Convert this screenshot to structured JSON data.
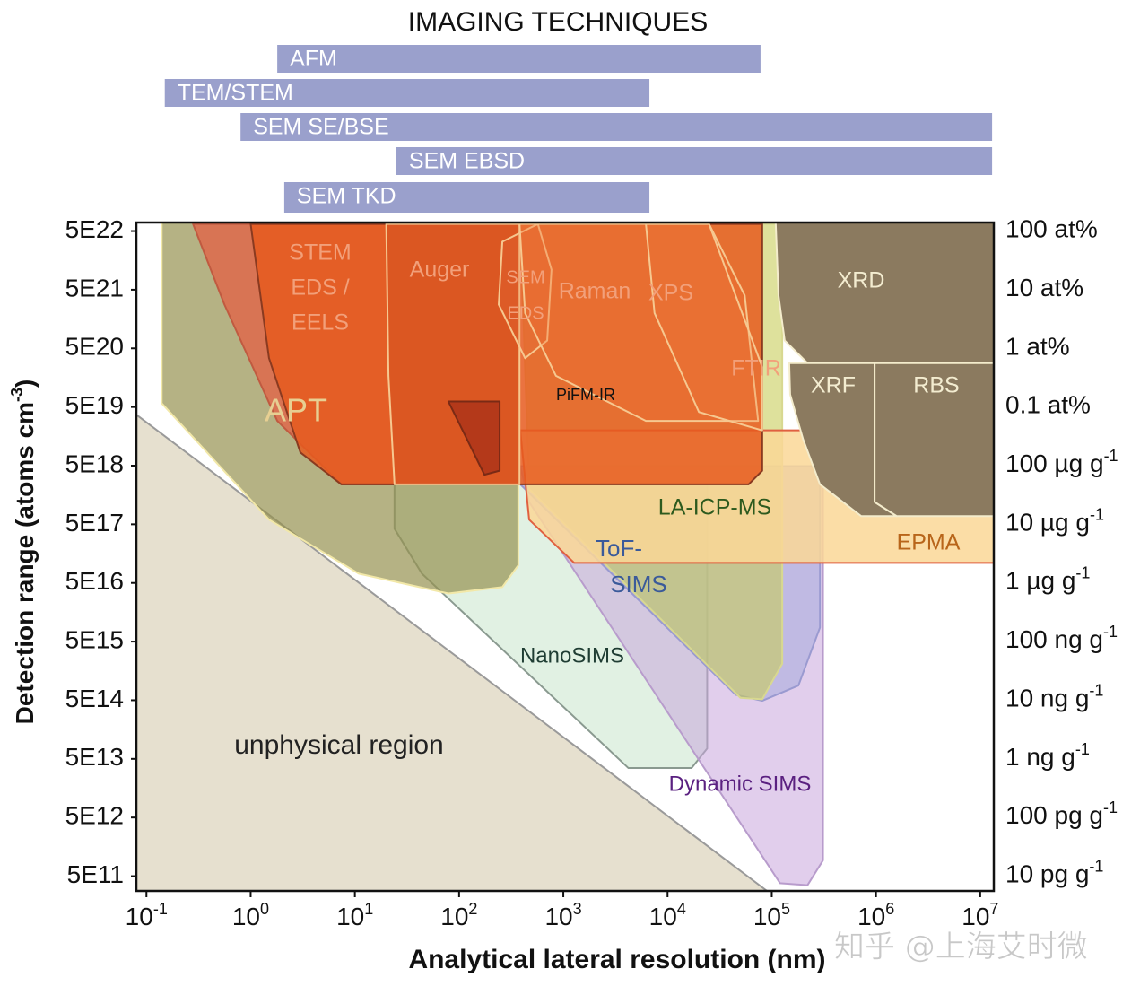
{
  "chart_data": {
    "type": "region",
    "imaging": {
      "title": "IMAGING TECHNIQUES",
      "color": "#9aa0cc",
      "bars": [
        {
          "name": "AFM",
          "range": [
            1.8,
            78000
          ]
        },
        {
          "name": "TEM/STEM",
          "range": [
            0.15,
            6700
          ]
        },
        {
          "name": "SEM SE/BSE",
          "range": [
            0.8,
            13000000
          ]
        },
        {
          "name": "SEM EBSD",
          "range": [
            25,
            13000000
          ]
        },
        {
          "name": "SEM TKD",
          "range": [
            2.1,
            6700
          ]
        }
      ]
    },
    "x_label": "Analytical lateral resolution (nm)",
    "y_label": [
      "Detection range (atoms cm",
      "-3",
      ")"
    ],
    "log_x": true,
    "log_y": true,
    "xlim": [
      0.08,
      13500000
    ],
    "ylim": [
      280000000000,
      7e+22
    ],
    "xticks": [
      {
        "value": 0.1,
        "label": "10",
        "sup": "-1"
      },
      {
        "value": 1,
        "label": "10",
        "sup": "0"
      },
      {
        "value": 10,
        "label": "10",
        "sup": "1"
      },
      {
        "value": 100,
        "label": "10",
        "sup": "2"
      },
      {
        "value": 1000,
        "label": "10",
        "sup": "3"
      },
      {
        "value": 10000,
        "label": "10",
        "sup": "4"
      },
      {
        "value": 100000,
        "label": "10",
        "sup": "5"
      },
      {
        "value": 1000000,
        "label": "10",
        "sup": "6"
      },
      {
        "value": 10000000,
        "label": "10",
        "sup": "7"
      }
    ],
    "yticks": [
      {
        "value": 5e+22,
        "label": "5E22"
      },
      {
        "value": 5e+21,
        "label": "5E21"
      },
      {
        "value": 5e+20,
        "label": "5E20"
      },
      {
        "value": 5e+19,
        "label": "5E19"
      },
      {
        "value": 5e+18,
        "label": "5E18"
      },
      {
        "value": 5e+17,
        "label": "5E17"
      },
      {
        "value": 5e+16,
        "label": "5E16"
      },
      {
        "value": 5000000000000000.0,
        "label": "5E15"
      },
      {
        "value": 500000000000000.0,
        "label": "5E14"
      },
      {
        "value": 50000000000000.0,
        "label": "5E13"
      },
      {
        "value": 5000000000000.0,
        "label": "5E12"
      },
      {
        "value": 500000000000,
        "label": "5E11"
      }
    ],
    "y2_labels": [
      {
        "text": "100 at%"
      },
      {
        "text": "10 at%"
      },
      {
        "text": "1 at%"
      },
      {
        "text": "0.1 at%"
      },
      {
        "text": "100 µg g",
        "sup": "-1"
      },
      {
        "text": "10 µg g",
        "sup": "-1"
      },
      {
        "text": "1 µg g",
        "sup": "-1"
      },
      {
        "text": "100 ng g",
        "sup": "-1"
      },
      {
        "text": "10 ng g",
        "sup": "-1"
      },
      {
        "text": "1 ng g",
        "sup": "-1"
      },
      {
        "text": "100 pg g",
        "sup": "-1"
      },
      {
        "text": "10 pg g",
        "sup": "-1"
      }
    ],
    "regions": [
      {
        "label_lines": [
          "unphysical region"
        ],
        "color": "#e6e0cf",
        "edge": "#9a9a9a",
        "label_color": "#222222",
        "x": [
          0.08,
          90000,
          0.08
        ],
        "y": [
          3.7e+19,
          280000000000,
          280000000000
        ]
      },
      {
        "label_lines": [
          "NanoSIMS"
        ],
        "color": "rgba(205,232,208,0.6)",
        "edge": "#8a9a90",
        "label_color": "#1f3d33",
        "x": [
          24,
          24000,
          24000,
          17000,
          4200,
          44,
          24
        ],
        "y": [
          2.4e+18,
          2.4e+18,
          75000000000000,
          35000000000000,
          35000000000000,
          7.2e+16,
          4.2e+17
        ]
      },
      {
        "label_lines": [
          "Dynamic SIMS"
        ],
        "color": "rgba(200,165,220,0.55)",
        "edge": "#b89ccc",
        "label_color": "#5a2080",
        "x": [
          386,
          310000,
          310000,
          220000,
          120000,
          470
        ],
        "y": [
          4.9e+18,
          4.9e+18,
          930000000000,
          350000000000,
          380000000000,
          1.2e+18
        ]
      },
      {
        "label_lines": [
          "ToF-",
          "SIMS"
        ],
        "color": "rgba(165,170,220,0.55)",
        "edge": "#9a9ad0",
        "label_color": "#3a5a9a",
        "x": [
          386,
          290000,
          290000,
          180000,
          81000,
          45000,
          386
        ],
        "y": [
          4.9e+18,
          4.9e+18,
          8700000000000000.0,
          890000000000000,
          490000000000000,
          620000000000000,
          2.4e+18
        ]
      },
      {
        "label_lines": [
          "LA-ICP-MS"
        ],
        "color": "rgba(200,205,90,0.6)",
        "edge": "#d8d890",
        "label_color": "#2d5a1e",
        "x": [
          386,
          126000,
          126000,
          81000,
          50000,
          470
        ],
        "y": [
          6.6e+22,
          6.6e+22,
          2100000000000000.0,
          520000000000000,
          550000000000000,
          2e+18
        ]
      },
      {
        "label_lines": [
          "EPMA"
        ],
        "color": "rgba(250,215,150,0.85)",
        "edge": "#e06040",
        "label_color": "#b8651a",
        "x": [
          386,
          13500000,
          13500000,
          1270,
          470
        ],
        "y": [
          2e+19,
          2e+19,
          1.1e+17,
          1.1e+17,
          6e+17
        ]
      },
      {
        "label_lines": [
          "XRD"
        ],
        "color": "#8b7a5f",
        "edge": "#f4eccc",
        "label_color": "#f3ecd0",
        "x": [
          109000,
          13500000,
          13500000,
          220000,
          133000,
          116000
        ],
        "y": [
          7.1e+22,
          7.1e+22,
          2.8e+20,
          2.8e+20,
          6.8e+20,
          4e+21
        ]
      },
      {
        "label_lines": [
          "XRF"
        ],
        "color": "#8b7a5f",
        "edge": "#f4eccc",
        "label_color": "#f3ecd0",
        "x": [
          147000,
          970000,
          970000,
          1580000,
          720000,
          290000,
          200000,
          150000
        ],
        "y": [
          2.8e+20,
          2.8e+20,
          1.2e+18,
          6.9e+17,
          6.9e+17,
          2.4e+18,
          1.4e+19,
          8.2e+19
        ]
      },
      {
        "label_lines": [
          "RBS"
        ],
        "color": "#8b7a5f",
        "edge": "#f4eccc",
        "label_color": "#f3ecd0",
        "x": [
          970000,
          13500000,
          13500000,
          1580000,
          970000
        ],
        "y": [
          2.8e+20,
          2.8e+20,
          6.9e+17,
          6.9e+17,
          1.2e+18
        ]
      },
      {
        "label_lines": [
          "APT"
        ],
        "color": "rgba(150,145,80,0.7)",
        "edge": "#f2e8a8",
        "label_color": "#e7cf92",
        "x": [
          0.14,
          370,
          370,
          260,
          79,
          10.9,
          1.5,
          0.14
        ],
        "y": [
          7.1e+22,
          7.1e+22,
          1e+17,
          4.25e+16,
          3.3e+16,
          7.2e+16,
          6e+17,
          5.8e+19
        ]
      },
      {
        "label_lines": [
          "STEM",
          "EDS /",
          "EELS"
        ],
        "color": "rgba(222,105,75,0.85)",
        "edge": "#c05a40",
        "label_color": "#f2a07a",
        "x": [
          0.28,
          380,
          380,
          7.4,
          1.8,
          0.56
        ],
        "y": [
          6.6e+22,
          6.6e+22,
          2.4e+18,
          2.4e+18,
          2.9e+19,
          2.8e+21
        ]
      },
      {
        "label_lines": [
          "FTIR"
        ],
        "color": "rgba(230,90,30,0.85)",
        "edge": "#8a3a20",
        "label_color": "#f2a07a",
        "x": [
          1.0,
          81000,
          81000,
          60000,
          7.4,
          3.0,
          1.5
        ],
        "y": [
          6.6e+22,
          6.6e+22,
          4.1e+18,
          2.4e+18,
          2.4e+18,
          8.4e+18,
          3.4e+20
        ]
      },
      {
        "label_lines": [
          "Auger"
        ],
        "color": "rgba(210,80,30,0.5)",
        "edge": "#f6c890",
        "label_color": "#f2a07a",
        "x": [
          20,
          380,
          380,
          24,
          21
        ],
        "y": [
          6.6e+22,
          6.6e+22,
          2.4e+18,
          2.4e+18,
          1.7e+20
        ]
      },
      {
        "label_lines": [
          "SEM",
          "EDS"
        ],
        "color": "rgba(230,110,60,0.2)",
        "edge": "#f6c890",
        "label_color": "#f2a07a",
        "x": [
          260,
          570,
          770,
          700,
          430,
          240
        ],
        "y": [
          3.3e+22,
          6.6e+22,
          1.1e+22,
          6.8e+20,
          3.4e+20,
          2.8e+21
        ]
      },
      {
        "label_lines": [
          "Raman"
        ],
        "color": "rgba(240,110,50,0.3)",
        "edge": "#f6c890",
        "label_color": "#f2a07a",
        "x": [
          380,
          25000,
          55000,
          74000,
          6200,
          850,
          430
        ],
        "y": [
          6.6e+22,
          6.6e+22,
          4e+21,
          2.9e+19,
          2.9e+19,
          1.7e+20,
          2e+21
        ]
      },
      {
        "label_lines": [
          "XPS"
        ],
        "color": "rgba(240,120,60,0.2)",
        "edge": "#f6c890",
        "label_color": "#f2a07a",
        "x": [
          6200,
          25000,
          81000,
          81000,
          20000,
          7500
        ],
        "y": [
          6.6e+22,
          6.6e+22,
          2.4e+20,
          2e+19,
          4.1e+19,
          2e+21
        ]
      },
      {
        "label_lines": [
          "PiFM-IR"
        ],
        "color": "rgba(170,50,25,0.8)",
        "edge": "#7a2a15",
        "label_color": "#111111",
        "x": [
          79,
          245,
          245,
          175
        ],
        "y": [
          6.2e+19,
          6.2e+19,
          4.1e+18,
          3.5e+18
        ]
      }
    ],
    "watermark": "知乎 @上海艾时微"
  }
}
